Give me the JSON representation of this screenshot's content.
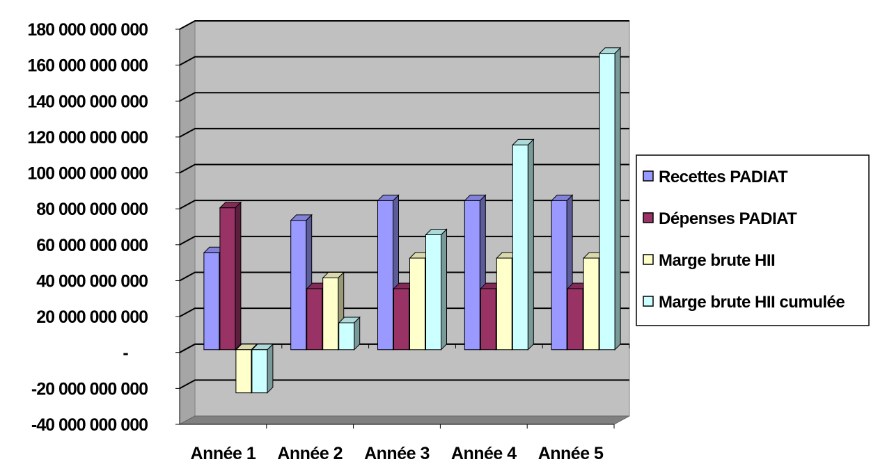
{
  "chart_data": {
    "type": "bar",
    "style": "3d-clustered",
    "title": "",
    "xlabel": "",
    "ylabel": "",
    "categories": [
      "Année 1",
      "Année 2",
      "Année 3",
      "Année 4",
      "Année 5"
    ],
    "ylim": [
      -40000000000,
      180000000000
    ],
    "y_ticks": [
      180000000000,
      160000000000,
      140000000000,
      120000000000,
      100000000000,
      80000000000,
      60000000000,
      40000000000,
      20000000000,
      0,
      -20000000000,
      -40000000000
    ],
    "y_tick_labels": [
      "180 000 000 000",
      "160 000 000 000",
      "140 000 000 000",
      "120 000 000 000",
      "100 000 000 000",
      "80 000 000 000",
      "60 000 000 000",
      "40 000 000 000",
      "20 000 000 000",
      "-",
      "-20 000 000 000",
      "-40 000 000 000"
    ],
    "grid": true,
    "legend_position": "right",
    "series": [
      {
        "name": "Recettes PADIAT",
        "color": "#9999FF",
        "values": [
          54000000000,
          72000000000,
          83000000000,
          83000000000,
          83000000000
        ]
      },
      {
        "name": "Dépenses PADIAT",
        "color": "#993366",
        "values": [
          79000000000,
          34000000000,
          34000000000,
          34000000000,
          34000000000
        ]
      },
      {
        "name": "Marge brute HII",
        "color": "#FFFFCC",
        "values": [
          -24000000000,
          40000000000,
          51000000000,
          51000000000,
          51000000000
        ]
      },
      {
        "name": "Marge brute HII cumulée",
        "color": "#CCFFFF",
        "values": [
          -24000000000,
          15000000000,
          64000000000,
          114000000000,
          165000000000
        ]
      }
    ],
    "plot_background": "#C0C0C0"
  }
}
